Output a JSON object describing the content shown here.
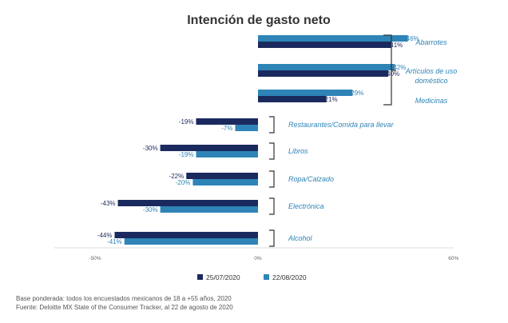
{
  "chart_data": {
    "type": "bar",
    "orientation": "horizontal",
    "title": "Intención de gasto neto",
    "categories": [
      "Abarrotes",
      "Artículos de uso doméstico",
      "Medicinas",
      "Restaurantes/Comida para llevar",
      "Libros",
      "Ropa/Calzado",
      "Electrónica",
      "Alcohol"
    ],
    "category_lines": [
      [
        "Abarrotes"
      ],
      [
        "Artículos de uso",
        "doméstico"
      ],
      [
        "Medicinas"
      ],
      [
        "Restaurantes/Comida para llevar"
      ],
      [
        "Libros"
      ],
      [
        "Ropa/Calzado"
      ],
      [
        "Electrónica"
      ],
      [
        "Alcohol"
      ]
    ],
    "series": [
      {
        "name": "25/07/2020",
        "color": "#1b2a5e",
        "values": [
          41,
          40,
          21,
          -19,
          -30,
          -22,
          -43,
          -44
        ],
        "labels": [
          "41%",
          "40%",
          "21%",
          "-19%",
          "-30%",
          "-22%",
          "-43%",
          "-44%"
        ]
      },
      {
        "name": "22/08/2020",
        "color": "#2e84b6",
        "values": [
          46,
          42,
          29,
          -7,
          -19,
          -20,
          -30,
          -41
        ],
        "labels": [
          "46%",
          "42%",
          "29%",
          "-7%",
          "-19%",
          "-20%",
          "-30%",
          "-41%"
        ]
      }
    ],
    "xlim": [
      -50,
      60
    ],
    "xticks": [
      "-50%",
      "0%",
      "60%"
    ],
    "grid": false,
    "legend_position": "bottom"
  },
  "footnote": {
    "line1": "Base ponderada: todos los encuestados mexicanos de 18 a +55 años, 2020",
    "line2": "Fuente: Deloitte MX State of the Consumer Tracker, al 22 de agosto de 2020"
  }
}
